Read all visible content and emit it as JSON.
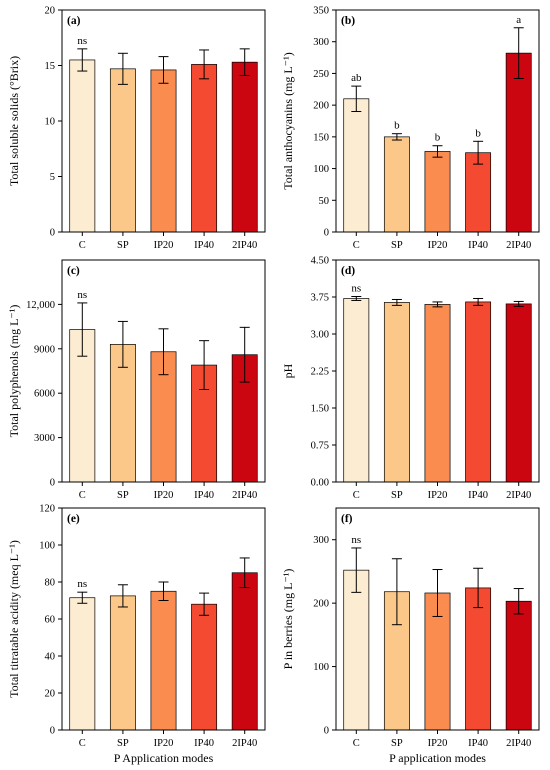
{
  "figure": {
    "x_axis_title": "P Application modes",
    "bar_colors": [
      "#fcecd2",
      "#fcc88a",
      "#fb8c50",
      "#f44a32",
      "#cc0610"
    ]
  },
  "chart_data": [
    {
      "type": "bar",
      "panel": "(a)",
      "categories": [
        "C",
        "SP",
        "IP20",
        "IP40",
        "2IP40"
      ],
      "values": [
        15.5,
        14.7,
        14.6,
        15.1,
        15.3
      ],
      "errors": [
        1.0,
        1.4,
        1.2,
        1.3,
        1.2
      ],
      "significance": [
        "ns",
        "",
        "",
        "",
        ""
      ],
      "ylabel": "Total soluble solids (°Brix)",
      "ylim": [
        0,
        20
      ],
      "yticks": [
        0,
        5,
        10,
        15,
        20
      ],
      "ytick_labels": [
        "0",
        "5",
        "10",
        "15",
        "20"
      ],
      "xlabel": ""
    },
    {
      "type": "bar",
      "panel": "(b)",
      "categories": [
        "C",
        "SP",
        "IP20",
        "IP40",
        "2IP40"
      ],
      "values": [
        210,
        150,
        127,
        125,
        282
      ],
      "errors": [
        20,
        5,
        9,
        18,
        40
      ],
      "significance": [
        "ab",
        "b",
        "b",
        "b",
        "a"
      ],
      "ylabel": "Total anthocyanins (mg L⁻¹)",
      "ylim": [
        0,
        350
      ],
      "yticks": [
        0,
        50,
        100,
        150,
        200,
        250,
        300,
        350
      ],
      "ytick_labels": [
        "0",
        "50",
        "100",
        "150",
        "200",
        "250",
        "300",
        "350"
      ],
      "xlabel": ""
    },
    {
      "type": "bar",
      "panel": "(c)",
      "categories": [
        "C",
        "SP",
        "IP20",
        "IP40",
        "2IP40"
      ],
      "values": [
        10300,
        9300,
        8800,
        7900,
        8600
      ],
      "errors": [
        1800,
        1550,
        1550,
        1650,
        1850
      ],
      "significance": [
        "ns",
        "",
        "",
        "",
        ""
      ],
      "ylabel": "Total polyphenols (mg L⁻¹)",
      "ylim": [
        0,
        15000
      ],
      "yticks": [
        0,
        3000,
        6000,
        9000,
        12000
      ],
      "ytick_labels": [
        "0",
        "3000",
        "6000",
        "9000",
        "12,000"
      ],
      "xlabel": ""
    },
    {
      "type": "bar",
      "panel": "(d)",
      "categories": [
        "C",
        "SP",
        "IP20",
        "IP40",
        "2IP40"
      ],
      "values": [
        3.72,
        3.64,
        3.6,
        3.65,
        3.61
      ],
      "errors": [
        0.04,
        0.06,
        0.05,
        0.07,
        0.05
      ],
      "significance": [
        "ns",
        "",
        "",
        "",
        ""
      ],
      "ylabel": "pH",
      "ylim": [
        0,
        4.5
      ],
      "yticks": [
        0,
        0.75,
        1.5,
        2.25,
        3.0,
        3.75,
        4.5
      ],
      "ytick_labels": [
        "0.00",
        "0.75",
        "1.50",
        "2.25",
        "3.00",
        "3.75",
        "4.50"
      ],
      "xlabel": ""
    },
    {
      "type": "bar",
      "panel": "(e)",
      "categories": [
        "C",
        "SP",
        "IP20",
        "IP40",
        "2IP40"
      ],
      "values": [
        71.5,
        72.5,
        75.0,
        68.0,
        85.0
      ],
      "errors": [
        3,
        6,
        5,
        6,
        8
      ],
      "significance": [
        "ns",
        "",
        "",
        "",
        ""
      ],
      "ylabel": "Total titratable acidity (meq L⁻¹)",
      "ylim": [
        0,
        120
      ],
      "yticks": [
        0,
        20,
        40,
        60,
        80,
        100,
        120
      ],
      "ytick_labels": [
        "0",
        "20",
        "40",
        "60",
        "80",
        "100",
        "120"
      ],
      "xlabel": "P Application modes"
    },
    {
      "type": "bar",
      "panel": "(f)",
      "categories": [
        "C",
        "SP",
        "IP20",
        "IP40",
        "2IP40"
      ],
      "values": [
        252,
        218,
        216,
        224,
        203
      ],
      "errors": [
        35,
        52,
        37,
        31,
        20
      ],
      "significance": [
        "ns",
        "",
        "",
        "",
        ""
      ],
      "ylabel": "P in berries (mg L⁻¹)",
      "ylim": [
        0,
        350
      ],
      "yticks": [
        0,
        100,
        200,
        300
      ],
      "ytick_labels": [
        "0",
        "100",
        "200",
        "300"
      ],
      "xlabel": "P application modes"
    }
  ]
}
